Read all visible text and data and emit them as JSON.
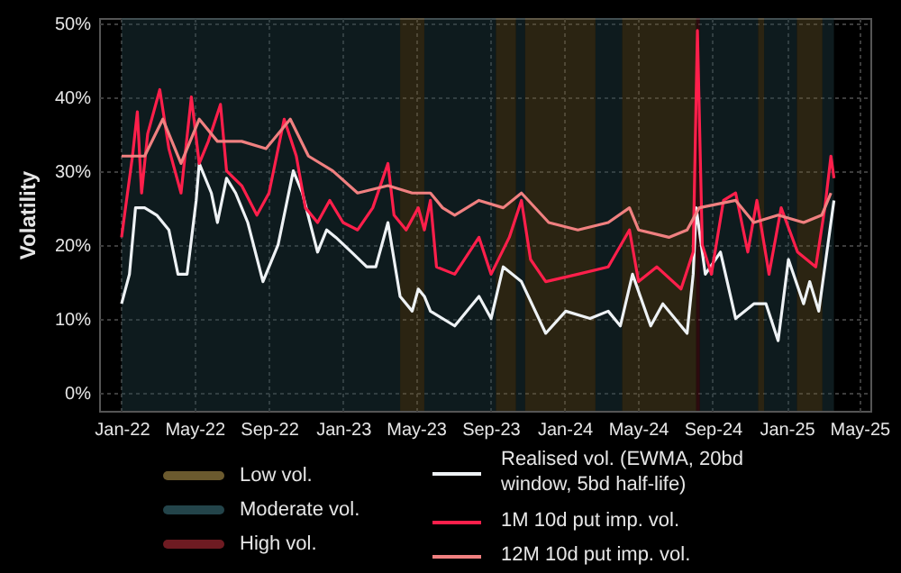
{
  "chart_data": {
    "type": "line",
    "ylabel": "Volatility",
    "xlim": [
      "2021-11-25",
      "2025-05-19"
    ],
    "xticks": [
      {
        "value": "2022-01-01",
        "label": "Jan-22"
      },
      {
        "value": "2022-05-01",
        "label": "May-22"
      },
      {
        "value": "2022-09-01",
        "label": "Sep-22"
      },
      {
        "value": "2023-01-01",
        "label": "Jan-23"
      },
      {
        "value": "2023-05-01",
        "label": "May-23"
      },
      {
        "value": "2023-09-01",
        "label": "Sep-23"
      },
      {
        "value": "2024-01-01",
        "label": "Jan-24"
      },
      {
        "value": "2024-05-01",
        "label": "May-24"
      },
      {
        "value": "2024-09-01",
        "label": "Sep-24"
      },
      {
        "value": "2025-01-01",
        "label": "Jan-25"
      },
      {
        "value": "2025-05-01",
        "label": "May-25"
      }
    ],
    "ylim": [
      -2.5,
      50.7
    ],
    "yticks": [
      {
        "value": 0,
        "label": "0%"
      },
      {
        "value": 10,
        "label": "10%"
      },
      {
        "value": 20,
        "label": "20%"
      },
      {
        "value": 30,
        "label": "30%"
      },
      {
        "value": 40,
        "label": "40%"
      },
      {
        "value": 50,
        "label": "50%"
      }
    ],
    "grid": true,
    "legend": "bottom",
    "marker": "none",
    "line_style": "solid",
    "series": [
      {
        "name": "Realised vol. (EWMA, 20bd window, 5bd half-life)",
        "color": "#eef2f5",
        "x": [
          "2022-01-01",
          "2022-01-14",
          "2022-01-24",
          "2022-02-08",
          "2022-02-28",
          "2022-03-20",
          "2022-04-04",
          "2022-04-19",
          "2022-05-04",
          "2022-05-09",
          "2022-05-29",
          "2022-06-08",
          "2022-06-23",
          "2022-07-08",
          "2022-07-28",
          "2022-08-22",
          "2022-09-16",
          "2022-10-11",
          "2022-10-26",
          "2022-11-20",
          "2022-12-05",
          "2022-12-20",
          "2023-01-15",
          "2023-02-09",
          "2023-02-24",
          "2023-03-16",
          "2023-04-05",
          "2023-04-25",
          "2023-05-05",
          "2023-05-15",
          "2023-05-25",
          "2023-07-04",
          "2023-08-13",
          "2023-09-02",
          "2023-09-22",
          "2023-10-22",
          "2023-12-01",
          "2024-01-03",
          "2024-02-12",
          "2024-03-13",
          "2024-04-02",
          "2024-04-22",
          "2024-05-22",
          "2024-06-11",
          "2024-07-21",
          "2024-07-31",
          "2024-08-05",
          "2024-08-20",
          "2024-09-14",
          "2024-10-09",
          "2024-11-08",
          "2024-11-28",
          "2024-12-18",
          "2025-01-04",
          "2025-01-29",
          "2025-02-08",
          "2025-02-23",
          "2025-03-10",
          "2025-03-20"
        ],
        "values": [
          12,
          16,
          25,
          25,
          24,
          22,
          16,
          16,
          26,
          31,
          27,
          23,
          29,
          27,
          23,
          15,
          20,
          30,
          27,
          19,
          22,
          21,
          19,
          17,
          17,
          23,
          13,
          11,
          14,
          13,
          11,
          9,
          13,
          10,
          17,
          15,
          8,
          11,
          10,
          11,
          9,
          16,
          9,
          12,
          8,
          16,
          25,
          16,
          19,
          10,
          12,
          12,
          7,
          18,
          12,
          15,
          11,
          20,
          26
        ]
      },
      {
        "name": "1M 10d put imp. vol.",
        "color": "#ff1f4b",
        "x": [
          "2022-01-01",
          "2022-01-19",
          "2022-01-27",
          "2022-02-03",
          "2022-02-13",
          "2022-03-05",
          "2022-03-20",
          "2022-04-09",
          "2022-04-26",
          "2022-05-09",
          "2022-05-24",
          "2022-06-13",
          "2022-06-23",
          "2022-07-18",
          "2022-08-12",
          "2022-09-01",
          "2022-09-26",
          "2022-10-16",
          "2022-10-31",
          "2022-11-20",
          "2022-12-10",
          "2023-01-01",
          "2023-01-25",
          "2023-02-19",
          "2023-03-16",
          "2023-03-26",
          "2023-04-15",
          "2023-05-05",
          "2023-05-15",
          "2023-05-25",
          "2023-06-04",
          "2023-07-04",
          "2023-08-13",
          "2023-09-02",
          "2023-10-02",
          "2023-10-22",
          "2023-11-06",
          "2023-12-01",
          "2024-01-23",
          "2024-03-13",
          "2024-04-17",
          "2024-05-02",
          "2024-06-01",
          "2024-07-11",
          "2024-07-31",
          "2024-08-07",
          "2024-08-15",
          "2024-08-30",
          "2024-09-19",
          "2024-10-09",
          "2024-10-29",
          "2024-11-13",
          "2024-12-03",
          "2024-12-23",
          "2025-01-19",
          "2025-02-18",
          "2025-03-05",
          "2025-03-15",
          "2025-03-20"
        ],
        "values": [
          21,
          32,
          38,
          27,
          35,
          41,
          33,
          27,
          40,
          31,
          34,
          39,
          30,
          28,
          24,
          27,
          37,
          32,
          25,
          23,
          26,
          23,
          22,
          25,
          31,
          24,
          22,
          25,
          22,
          26,
          17,
          16,
          21,
          16,
          21,
          26,
          18,
          15,
          16,
          17,
          22,
          15,
          17,
          14,
          19,
          49,
          20,
          16,
          26,
          27,
          19,
          26,
          16,
          25,
          19,
          17,
          25,
          32,
          29
        ]
      },
      {
        "name": "12M 10d put imp. vol.",
        "color": "#f08080",
        "x": [
          "2022-01-01",
          "2022-02-08",
          "2022-03-10",
          "2022-04-09",
          "2022-05-09",
          "2022-06-08",
          "2022-07-18",
          "2022-08-27",
          "2022-10-06",
          "2022-11-05",
          "2022-12-15",
          "2023-01-25",
          "2023-03-16",
          "2023-04-25",
          "2023-05-25",
          "2023-06-14",
          "2023-07-04",
          "2023-08-13",
          "2023-09-22",
          "2023-10-22",
          "2023-12-06",
          "2024-01-23",
          "2024-03-13",
          "2024-04-17",
          "2024-05-02",
          "2024-06-21",
          "2024-07-21",
          "2024-08-10",
          "2024-10-09",
          "2024-11-08",
          "2024-12-18",
          "2025-01-29",
          "2025-02-28",
          "2025-03-15"
        ],
        "values": [
          32,
          32,
          37,
          31,
          37,
          34,
          34,
          33,
          37,
          32,
          30,
          27,
          28,
          27,
          27,
          25,
          24,
          26,
          25,
          27,
          23,
          22,
          23,
          25,
          22,
          21,
          22,
          25,
          26,
          23,
          24,
          23,
          24,
          27
        ]
      }
    ],
    "bands": [
      {
        "axis": "x",
        "from": "2023-04-05",
        "to": "2023-05-15",
        "label": "Low vol.",
        "color": "#6b5a2e"
      },
      {
        "axis": "x",
        "from": "2022-01-01",
        "to": "2023-04-05",
        "label": "Moderate vol.",
        "color": "#23444a"
      },
      {
        "axis": "x",
        "from": "2023-05-15",
        "to": "2023-09-10",
        "color": "#23444a"
      },
      {
        "axis": "x",
        "from": "2023-09-10",
        "to": "2023-10-13",
        "color": "#6b5a2e"
      },
      {
        "axis": "x",
        "from": "2023-10-13",
        "to": "2023-10-28",
        "color": "#23444a"
      },
      {
        "axis": "x",
        "from": "2023-10-28",
        "to": "2024-02-21",
        "color": "#6b5a2e"
      },
      {
        "axis": "x",
        "from": "2024-02-21",
        "to": "2024-04-05",
        "color": "#23444a"
      },
      {
        "axis": "x",
        "from": "2024-04-05",
        "to": "2024-08-05",
        "color": "#6b5a2e"
      },
      {
        "axis": "x",
        "from": "2024-08-05",
        "to": "2024-08-11",
        "label": "High vol.",
        "color": "#6e1b22"
      },
      {
        "axis": "x",
        "from": "2024-08-11",
        "to": "2024-11-15",
        "color": "#23444a"
      },
      {
        "axis": "x",
        "from": "2024-11-15",
        "to": "2024-11-25",
        "color": "#6b5a2e"
      },
      {
        "axis": "x",
        "from": "2024-11-25",
        "to": "2025-01-18",
        "color": "#23444a"
      },
      {
        "axis": "x",
        "from": "2025-01-18",
        "to": "2025-03-01",
        "color": "#6b5a2e"
      },
      {
        "axis": "x",
        "from": "2025-03-01",
        "to": "2025-03-20",
        "color": "#23444a"
      }
    ]
  }
}
